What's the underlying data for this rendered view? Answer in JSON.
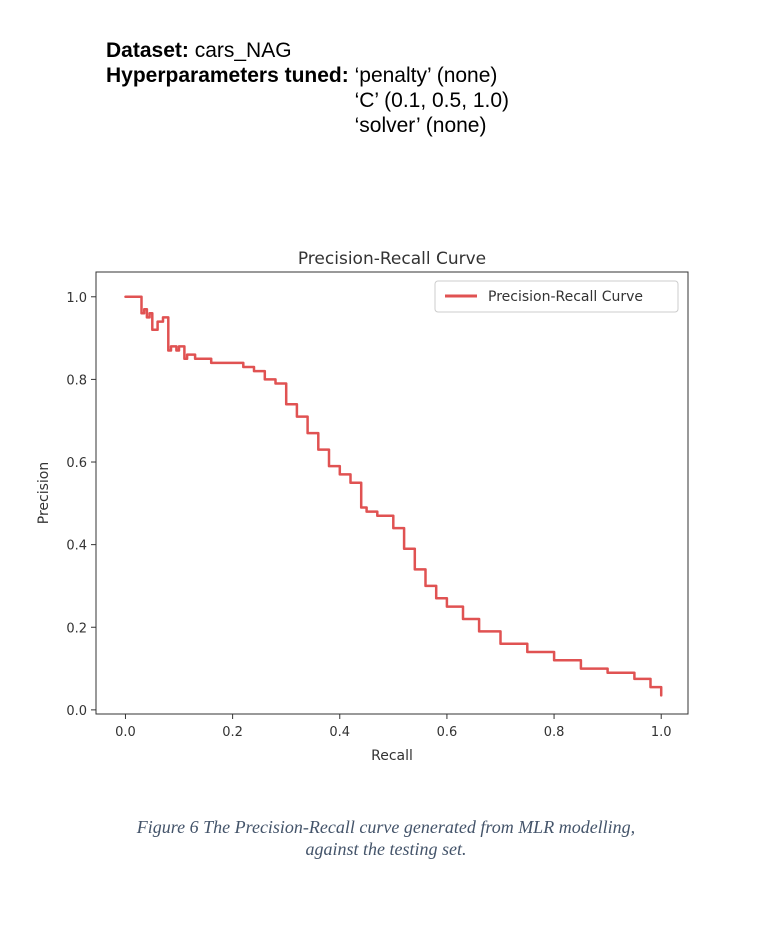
{
  "header": {
    "dataset_key": "Dataset:",
    "dataset_value": " cars_NAG",
    "hp_key": "Hyperparameters tuned:",
    "hp_values": [
      "‘penalty’ (none)",
      "‘C’ (0.1, 0.5, 1.0)",
      "‘solver’ (none)"
    ]
  },
  "caption": {
    "line1": "Figure  6 The Precision-Recall curve generated from MLR modelling,",
    "line2": "against the testing set."
  },
  "chart_data": {
    "type": "line",
    "title": "Precision-Recall Curve",
    "xlabel": "Recall",
    "ylabel": "Precision",
    "xlim": [
      -0.055,
      1.05
    ],
    "ylim": [
      -0.01,
      1.06
    ],
    "xticks": [
      0.0,
      0.2,
      0.4,
      0.6,
      0.8,
      1.0
    ],
    "xtick_labels": [
      "0.0",
      "0.2",
      "0.4",
      "0.6",
      "0.8",
      "1.0"
    ],
    "yticks": [
      0.0,
      0.2,
      0.4,
      0.6,
      0.8,
      1.0
    ],
    "ytick_labels": [
      "0.0",
      "0.2",
      "0.4",
      "0.6",
      "0.8",
      "1.0"
    ],
    "grid": false,
    "legend_position": "top-right",
    "colors": {
      "line": "#e05252",
      "axis": "#333333",
      "text": "#333333"
    },
    "series": [
      {
        "name": "Precision-Recall Curve",
        "x": [
          0.0,
          0.025,
          0.03,
          0.035,
          0.04,
          0.045,
          0.05,
          0.06,
          0.07,
          0.08,
          0.085,
          0.095,
          0.1,
          0.11,
          0.115,
          0.13,
          0.15,
          0.16,
          0.18,
          0.2,
          0.22,
          0.24,
          0.26,
          0.28,
          0.3,
          0.32,
          0.34,
          0.36,
          0.38,
          0.4,
          0.42,
          0.44,
          0.45,
          0.47,
          0.5,
          0.52,
          0.54,
          0.56,
          0.58,
          0.6,
          0.63,
          0.66,
          0.7,
          0.75,
          0.8,
          0.85,
          0.9,
          0.95,
          0.98,
          1.0
        ],
        "y": [
          1.0,
          1.0,
          0.96,
          0.97,
          0.95,
          0.96,
          0.92,
          0.94,
          0.95,
          0.87,
          0.88,
          0.87,
          0.88,
          0.85,
          0.86,
          0.85,
          0.85,
          0.84,
          0.84,
          0.84,
          0.83,
          0.82,
          0.8,
          0.79,
          0.74,
          0.71,
          0.67,
          0.63,
          0.59,
          0.57,
          0.55,
          0.49,
          0.48,
          0.47,
          0.44,
          0.39,
          0.34,
          0.3,
          0.27,
          0.25,
          0.22,
          0.19,
          0.16,
          0.14,
          0.12,
          0.1,
          0.09,
          0.075,
          0.055,
          0.035
        ]
      }
    ]
  }
}
